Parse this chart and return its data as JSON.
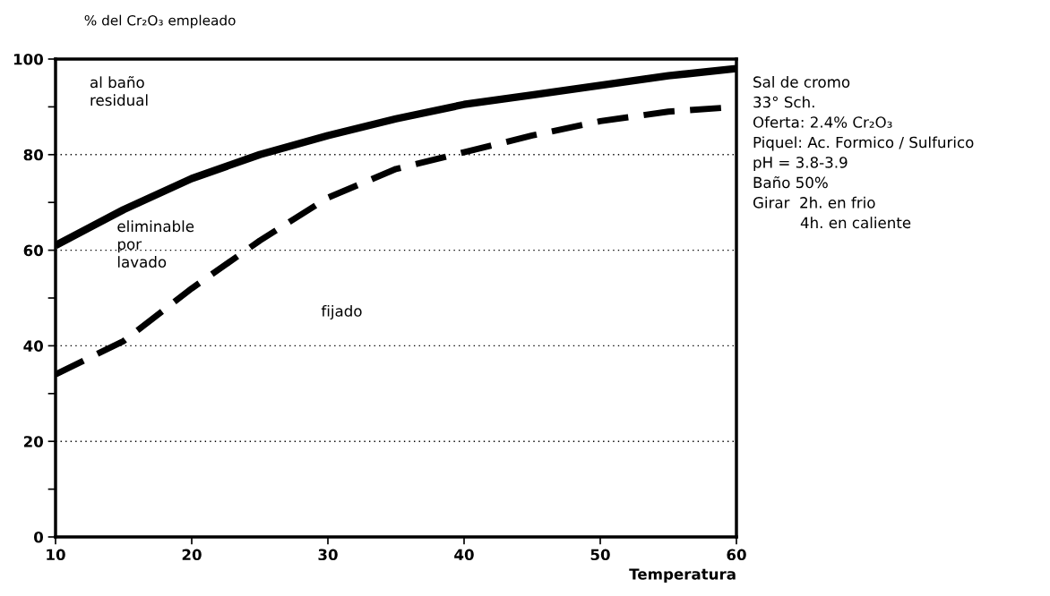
{
  "chart_data": {
    "type": "line",
    "ylabel": "% del Cr₂O₃ empleado",
    "xlabel": "Temperatura",
    "x": [
      10,
      15,
      20,
      25,
      30,
      35,
      40,
      45,
      50,
      55,
      60
    ],
    "series": [
      {
        "color": "#000000",
        "line_style": "solid",
        "values": [
          61,
          68.5,
          75,
          80,
          84,
          87.5,
          90.5,
          92.5,
          94.5,
          96.5,
          98
        ]
      },
      {
        "color": "#000000",
        "line_style": "dashed",
        "values": [
          34,
          41,
          52,
          62,
          71,
          77,
          80.5,
          84,
          87,
          89,
          90
        ]
      }
    ],
    "xlim": [
      10,
      60
    ],
    "ylim": [
      0,
      100
    ],
    "xticks": [
      10,
      20,
      30,
      40,
      50,
      60
    ],
    "yticks": [
      0,
      {
        "value": 10,
        "label": null
      },
      20,
      {
        "value": 30,
        "label": null
      },
      40,
      {
        "value": 50,
        "label": null
      },
      60,
      {
        "value": 70,
        "label": null
      },
      80,
      {
        "value": 90,
        "label": null
      },
      100
    ],
    "grid": "y",
    "marker": "none",
    "legend": false,
    "annotations": [
      "al baño\nresidual",
      "eliminable\npor\nlavado",
      "fijado",
      "Sal de cromo\n33° Sch.\nOferta: 2.4% Cr₂O₃\nPiquel: Ac. Formico / Sulfurico\npH = 3.8-3.9\nBaño 50%\nGirar  2h. en frio\n          4h. en caliente"
    ]
  }
}
